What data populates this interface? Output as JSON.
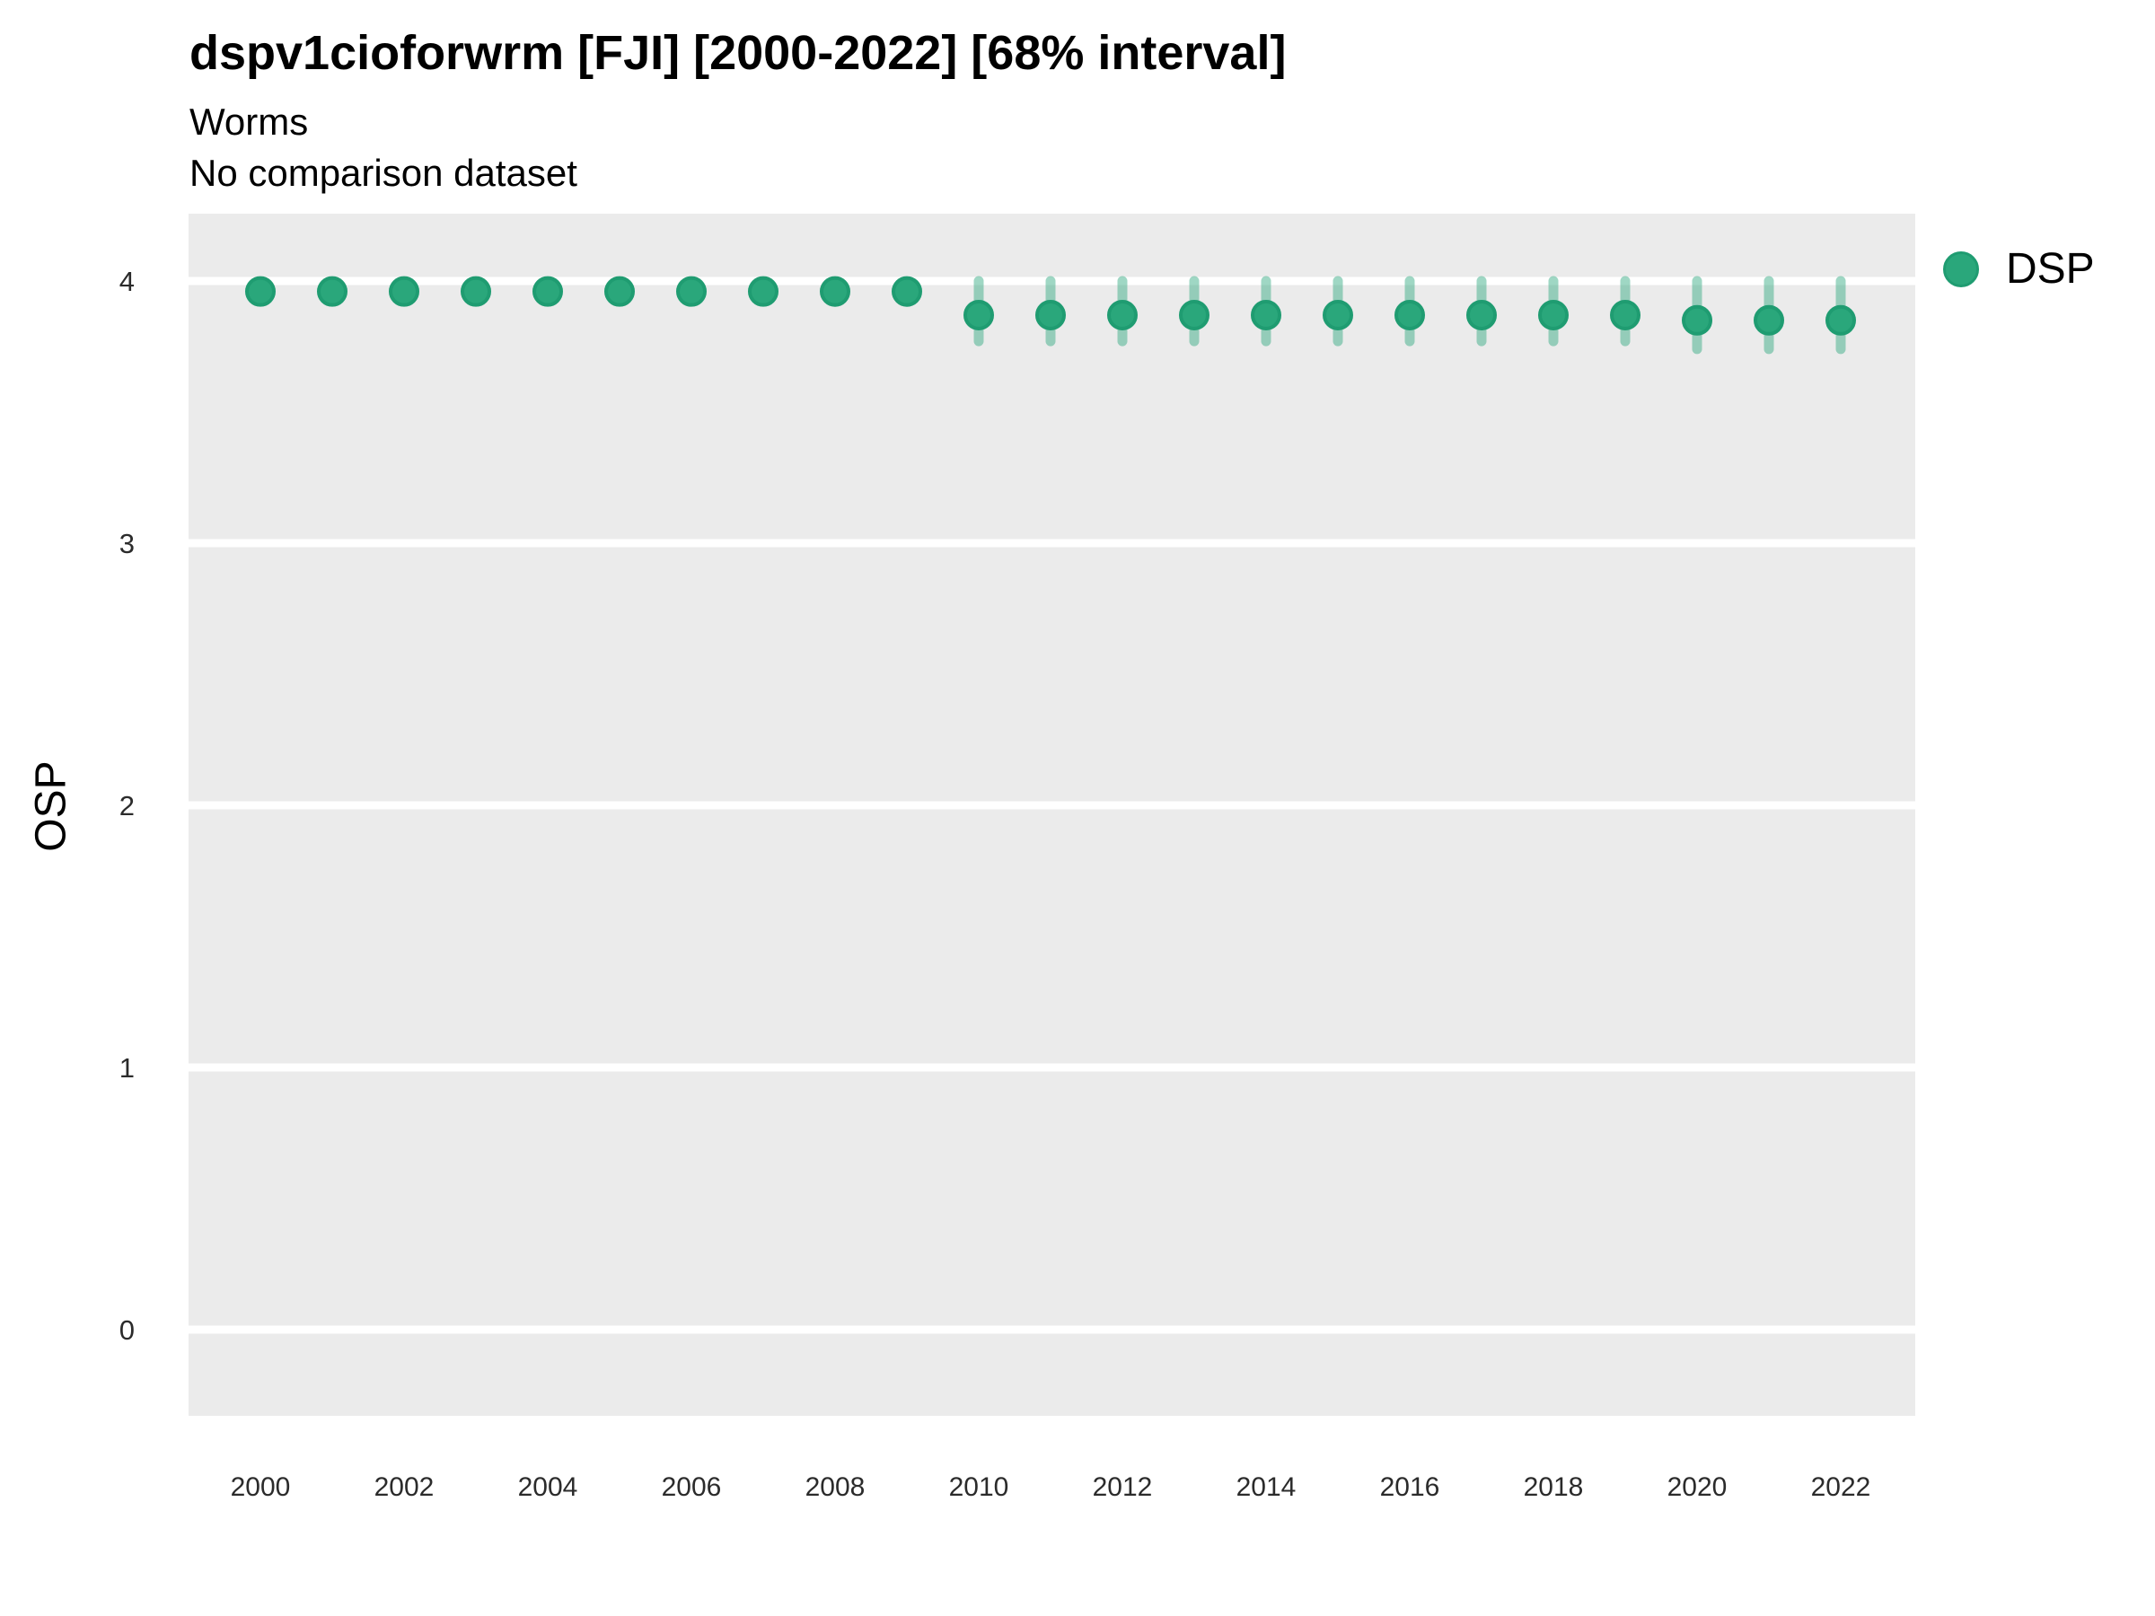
{
  "header": {
    "title": "dspv1cioforwrm [FJI] [2000-2022] [68% interval]",
    "subtitle": "Worms",
    "note": "No comparison dataset"
  },
  "legend": {
    "position": "right-top",
    "items": [
      {
        "label": "DSP",
        "marker": "circle-icon",
        "marker_color": "#2aa77b"
      }
    ]
  },
  "colors": {
    "panel_background": "#ebebeb",
    "gridline": "#ffffff",
    "marker_fill": "#2aa77b",
    "marker_border": "#1f9c71",
    "interval_line": "#2ba77c",
    "tick_text": "#2b2b2b",
    "title_text": "#000000"
  },
  "chart_data": {
    "type": "scatter",
    "title": "dspv1cioforwrm [FJI] [2000-2022] [68% interval]",
    "subtitle": "Worms",
    "note": "No comparison dataset",
    "xlabel": "",
    "ylabel": "OSP",
    "interval_label": "68% interval",
    "x_ticks": [
      2000,
      2002,
      2004,
      2006,
      2008,
      2010,
      2012,
      2014,
      2016,
      2018,
      2020,
      2022
    ],
    "y_ticks": [
      0,
      1,
      2,
      3,
      4
    ],
    "xlim": [
      1999,
      2023
    ],
    "ylim": [
      -0.32,
      4.27
    ],
    "grid": "major-horizontal",
    "legend_position": "right-top",
    "series": [
      {
        "name": "DSP",
        "points": [
          {
            "year": 2000,
            "value": 3.96,
            "lo": 3.93,
            "hi": 3.99
          },
          {
            "year": 2001,
            "value": 3.96,
            "lo": 3.93,
            "hi": 3.99
          },
          {
            "year": 2002,
            "value": 3.96,
            "lo": 3.93,
            "hi": 3.99
          },
          {
            "year": 2003,
            "value": 3.96,
            "lo": 3.93,
            "hi": 3.99
          },
          {
            "year": 2004,
            "value": 3.96,
            "lo": 3.93,
            "hi": 3.99
          },
          {
            "year": 2005,
            "value": 3.96,
            "lo": 3.93,
            "hi": 3.99
          },
          {
            "year": 2006,
            "value": 3.96,
            "lo": 3.93,
            "hi": 3.99
          },
          {
            "year": 2007,
            "value": 3.96,
            "lo": 3.93,
            "hi": 3.99
          },
          {
            "year": 2008,
            "value": 3.96,
            "lo": 3.92,
            "hi": 3.99
          },
          {
            "year": 2009,
            "value": 3.96,
            "lo": 3.92,
            "hi": 3.99
          },
          {
            "year": 2010,
            "value": 3.87,
            "lo": 3.77,
            "hi": 4.0
          },
          {
            "year": 2011,
            "value": 3.87,
            "lo": 3.77,
            "hi": 4.0
          },
          {
            "year": 2012,
            "value": 3.87,
            "lo": 3.77,
            "hi": 4.0
          },
          {
            "year": 2013,
            "value": 3.87,
            "lo": 3.77,
            "hi": 4.0
          },
          {
            "year": 2014,
            "value": 3.87,
            "lo": 3.77,
            "hi": 4.0
          },
          {
            "year": 2015,
            "value": 3.87,
            "lo": 3.77,
            "hi": 4.0
          },
          {
            "year": 2016,
            "value": 3.87,
            "lo": 3.77,
            "hi": 4.0
          },
          {
            "year": 2017,
            "value": 3.87,
            "lo": 3.77,
            "hi": 4.0
          },
          {
            "year": 2018,
            "value": 3.87,
            "lo": 3.77,
            "hi": 4.0
          },
          {
            "year": 2019,
            "value": 3.87,
            "lo": 3.77,
            "hi": 4.0
          },
          {
            "year": 2020,
            "value": 3.85,
            "lo": 3.74,
            "hi": 4.0
          },
          {
            "year": 2021,
            "value": 3.85,
            "lo": 3.74,
            "hi": 4.0
          },
          {
            "year": 2022,
            "value": 3.85,
            "lo": 3.74,
            "hi": 4.0
          }
        ]
      }
    ]
  }
}
